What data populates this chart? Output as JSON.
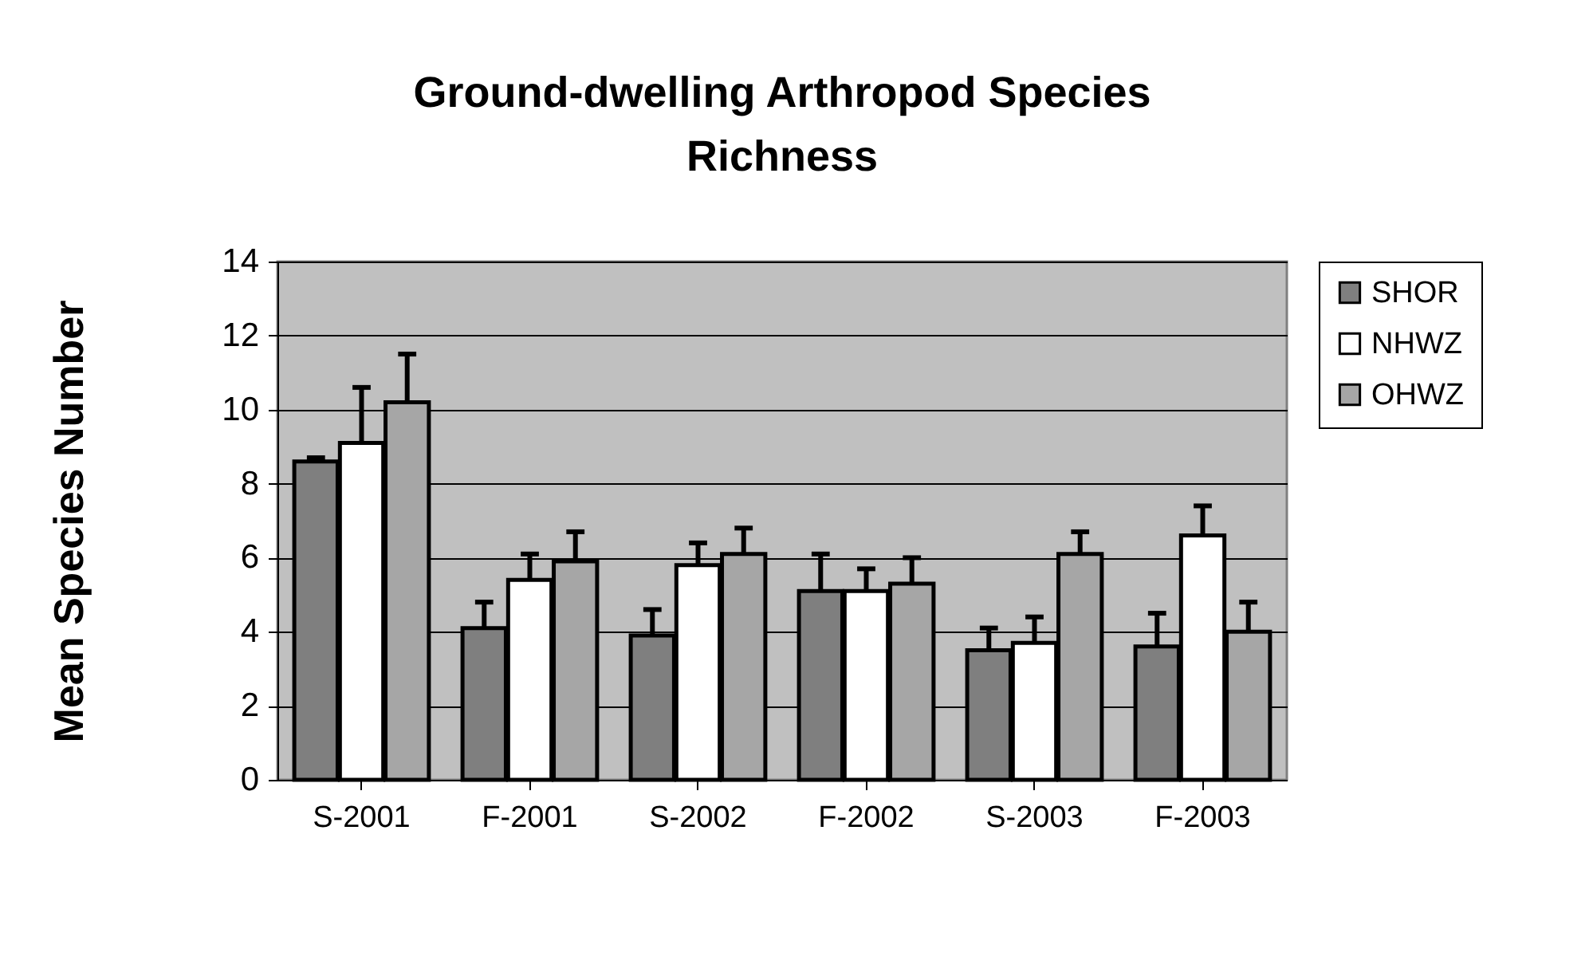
{
  "chart_data": {
    "type": "bar",
    "title": "Ground-dwelling Arthropod Species Richness",
    "ylabel": "Mean Species Number",
    "categories": [
      "S-2001",
      "F-2001",
      "S-2002",
      "F-2002",
      "S-2003",
      "F-2003"
    ],
    "series": [
      {
        "name": "SHOR",
        "color": "#7f7f7f",
        "values": [
          8.6,
          4.1,
          3.9,
          5.1,
          3.5,
          3.6
        ],
        "errors": [
          [
            8.6,
            8.7
          ],
          [
            4.1,
            4.8
          ],
          [
            3.9,
            4.6
          ],
          [
            5.1,
            6.1
          ],
          [
            3.5,
            4.1
          ],
          [
            3.6,
            4.5
          ]
        ]
      },
      {
        "name": "NHWZ",
        "color": "#ffffff",
        "values": [
          9.1,
          5.4,
          5.8,
          5.1,
          3.7,
          6.6
        ],
        "errors": [
          [
            9.1,
            10.6
          ],
          [
            5.4,
            6.1
          ],
          [
            5.8,
            6.4
          ],
          [
            5.1,
            5.7
          ],
          [
            3.7,
            4.4
          ],
          [
            6.6,
            7.4
          ]
        ]
      },
      {
        "name": "OHWZ",
        "color": "#a6a6a6",
        "values": [
          10.2,
          5.9,
          6.1,
          5.3,
          6.1,
          4.0
        ],
        "errors": [
          [
            10.2,
            11.5
          ],
          [
            5.9,
            6.7
          ],
          [
            6.1,
            6.8
          ],
          [
            5.3,
            6.0
          ],
          [
            6.1,
            6.7
          ],
          [
            4.0,
            4.8
          ]
        ]
      }
    ],
    "ylim": [
      0,
      14
    ],
    "yticks": [
      0,
      2,
      4,
      6,
      8,
      10,
      12,
      14
    ],
    "grid": "y",
    "legend": "right"
  }
}
